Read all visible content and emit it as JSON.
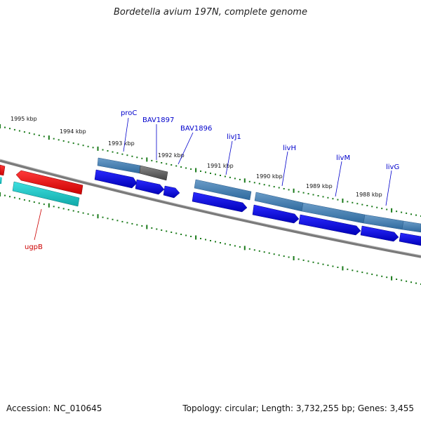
{
  "title": "Bordetella avium 197N, complete genome",
  "footer": {
    "accession": "Accession: NC_010645",
    "summary": "Topology: circular; Length: 3,732,255 bp; Genes: 3,455"
  },
  "colors": {
    "backbone": "#7a7a7a",
    "tick": "#1a7a1a",
    "cds_forward": "#0000e6",
    "gene_forward": "#4a84b8",
    "pseudo": "#666666",
    "cds_reverse": "#ff0000",
    "gene_reverse": "#18c8c8",
    "label_forward": "#0000cc",
    "label_reverse": "#cc0000"
  },
  "scale_labels": [
    "1995 kbp",
    "1994 kbp",
    "1993 kbp",
    "1992 kbp",
    "1991 kbp",
    "1990 kbp",
    "1989 kbp",
    "1988 kbp"
  ],
  "gene_labels": [
    {
      "name": "proC",
      "strand": "forward"
    },
    {
      "name": "BAV1897",
      "strand": "forward"
    },
    {
      "name": "BAV1896",
      "strand": "forward"
    },
    {
      "name": "livJ1",
      "strand": "forward"
    },
    {
      "name": "livH",
      "strand": "forward"
    },
    {
      "name": "livM",
      "strand": "forward"
    },
    {
      "name": "livG",
      "strand": "forward"
    },
    {
      "name": "ugpB",
      "strand": "reverse"
    }
  ]
}
